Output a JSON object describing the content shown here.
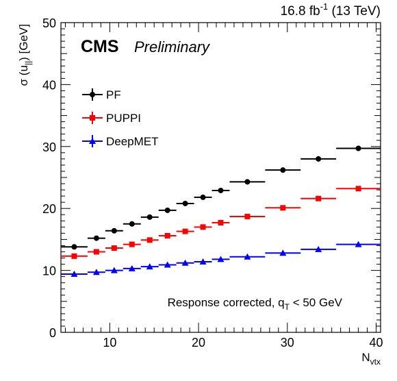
{
  "header": {
    "lumi_value": "16.8 fb",
    "lumi_exp": "-1",
    "lumi_rest": " (13 TeV)",
    "cms": "CMS",
    "preliminary": "Preliminary"
  },
  "chart_data": {
    "type": "scatter",
    "title": "",
    "xlabel_main": "N",
    "xlabel_sub": "vtx",
    "ylabel_main": "σ (u",
    "ylabel_sub": "||",
    "ylabel_rest": ") [GeV]",
    "xlim": [
      4.5,
      40.5
    ],
    "ylim": [
      0,
      50
    ],
    "xticks": [
      10,
      20,
      30,
      40
    ],
    "yticks": [
      0,
      10,
      20,
      30,
      40,
      50
    ],
    "grid": false,
    "legend_position": "top-left",
    "annotation": {
      "main": "Response corrected, q",
      "sub": "T",
      "rest": " < 50 GeV"
    },
    "series": [
      {
        "name": "PF",
        "color": "#000000",
        "marker": "circle",
        "x": [
          6,
          8.5,
          10.5,
          12.5,
          14.5,
          16.5,
          18.5,
          20.5,
          22.5,
          25.5,
          29.5,
          33.5,
          38
        ],
        "xerr": [
          1.5,
          1,
          1,
          1,
          1,
          1,
          1,
          1,
          1,
          2,
          2,
          2,
          2.5
        ],
        "y": [
          13.8,
          15.2,
          16.4,
          17.5,
          18.6,
          19.7,
          20.8,
          21.8,
          22.9,
          24.3,
          26.2,
          28.0,
          29.7
        ]
      },
      {
        "name": "PUPPI",
        "color": "#ff0000",
        "marker": "square",
        "x": [
          6,
          8.5,
          10.5,
          12.5,
          14.5,
          16.5,
          18.5,
          20.5,
          22.5,
          25.5,
          29.5,
          33.5,
          38
        ],
        "xerr": [
          1.5,
          1,
          1,
          1,
          1,
          1,
          1,
          1,
          1,
          2,
          2,
          2,
          2.5
        ],
        "y": [
          12.3,
          13.0,
          13.6,
          14.2,
          14.9,
          15.6,
          16.3,
          17.0,
          17.7,
          18.7,
          20.1,
          21.6,
          23.2
        ]
      },
      {
        "name": "DeepMET",
        "color": "#0000ff",
        "marker": "triangle",
        "x": [
          6,
          8.5,
          10.5,
          12.5,
          14.5,
          16.5,
          18.5,
          20.5,
          22.5,
          25.5,
          29.5,
          33.5,
          38
        ],
        "xerr": [
          1.5,
          1,
          1,
          1,
          1,
          1,
          1,
          1,
          1,
          2,
          2,
          2,
          2.5
        ],
        "y": [
          9.4,
          9.7,
          10.0,
          10.3,
          10.6,
          10.9,
          11.2,
          11.4,
          11.8,
          12.2,
          12.8,
          13.4,
          14.2
        ]
      }
    ]
  }
}
